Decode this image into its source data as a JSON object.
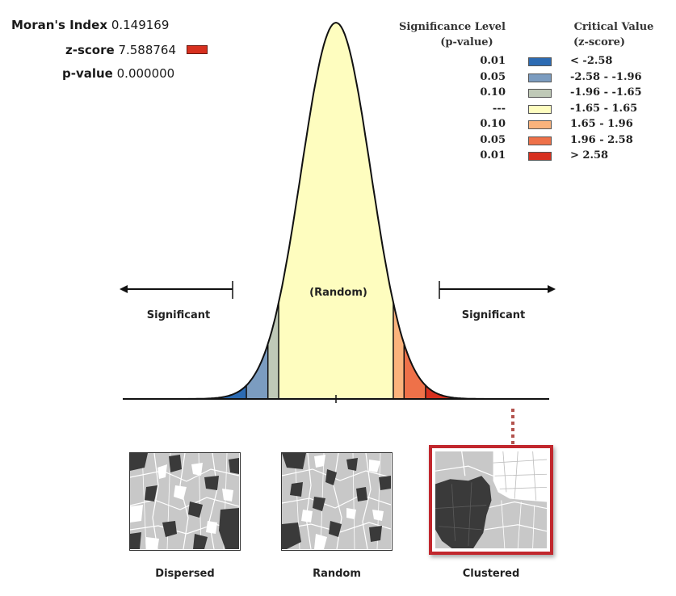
{
  "stats": [
    {
      "label": "Moran's Index",
      "value": "0.149169"
    },
    {
      "label": "z-score",
      "value": "7.588764"
    },
    {
      "label": "p-value",
      "value": "0.000000"
    }
  ],
  "zscore_swatch_color": "#d7301f",
  "legend": {
    "header_p": [
      "Significance Level",
      "(p-value)"
    ],
    "header_z": [
      "Critical Value",
      "(z-score)"
    ],
    "rows": [
      {
        "p": "0.01",
        "z": "< -2.58",
        "color": "#2c6bb3"
      },
      {
        "p": "0.05",
        "z": "-2.58 - -1.96",
        "color": "#7b9cc0"
      },
      {
        "p": "0.10",
        "z": "-1.96 - -1.65",
        "color": "#bfc9b7"
      },
      {
        "p": "---",
        "z": "-1.65 - 1.65",
        "color": "#fefdbf"
      },
      {
        "p": "0.10",
        "z": "1.65 - 1.96",
        "color": "#fbb37c"
      },
      {
        "p": "0.05",
        "z": "1.96 - 2.58",
        "color": "#ee7149"
      },
      {
        "p": "0.01",
        "z": "> 2.58",
        "color": "#d7301f"
      }
    ]
  },
  "curve": {
    "random_label": "(Random)",
    "left_label": "Significant",
    "right_label": "Significant"
  },
  "panels": [
    {
      "label": "Dispersed"
    },
    {
      "label": "Random"
    },
    {
      "label": "Clustered"
    }
  ]
}
